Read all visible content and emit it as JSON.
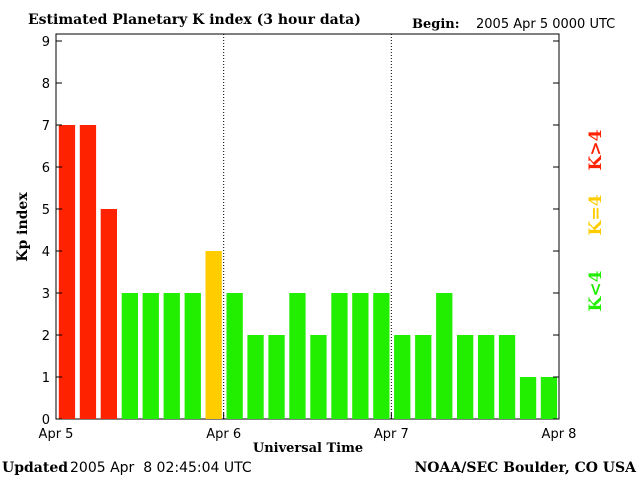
{
  "header": {
    "title": "Estimated Planetary K index (3 hour data)",
    "begin_label": "Begin:",
    "begin_value": "2005 Apr 5 0000 UTC"
  },
  "footer": {
    "updated_label": "Updated",
    "updated_value": "2005 Apr  8 02:45:04 UTC",
    "source": "NOAA/SEC Boulder, CO USA"
  },
  "legend": {
    "high": "K>4",
    "equal": "K=4",
    "low": "K<4"
  },
  "colors": {
    "high": "#ff2200",
    "equal": "#ffcc00",
    "low": "#22ee00",
    "axis": "#000000"
  },
  "chart_data": {
    "type": "bar",
    "xlabel": "Universal Time",
    "ylabel": "Kp index",
    "ylim": [
      0,
      9
    ],
    "yticks": [
      0,
      1,
      2,
      3,
      4,
      5,
      6,
      7,
      8,
      9
    ],
    "xticks": [
      "Apr 5",
      "Apr 6",
      "Apr 7",
      "Apr 8"
    ],
    "days": 3,
    "bars_per_day": 8,
    "values": [
      7,
      7,
      5,
      3,
      3,
      3,
      3,
      4,
      3,
      2,
      2,
      3,
      2,
      3,
      3,
      3,
      2,
      2,
      3,
      2,
      2,
      2,
      1,
      1
    ],
    "grid": "dotted vertical lines at day boundaries"
  }
}
